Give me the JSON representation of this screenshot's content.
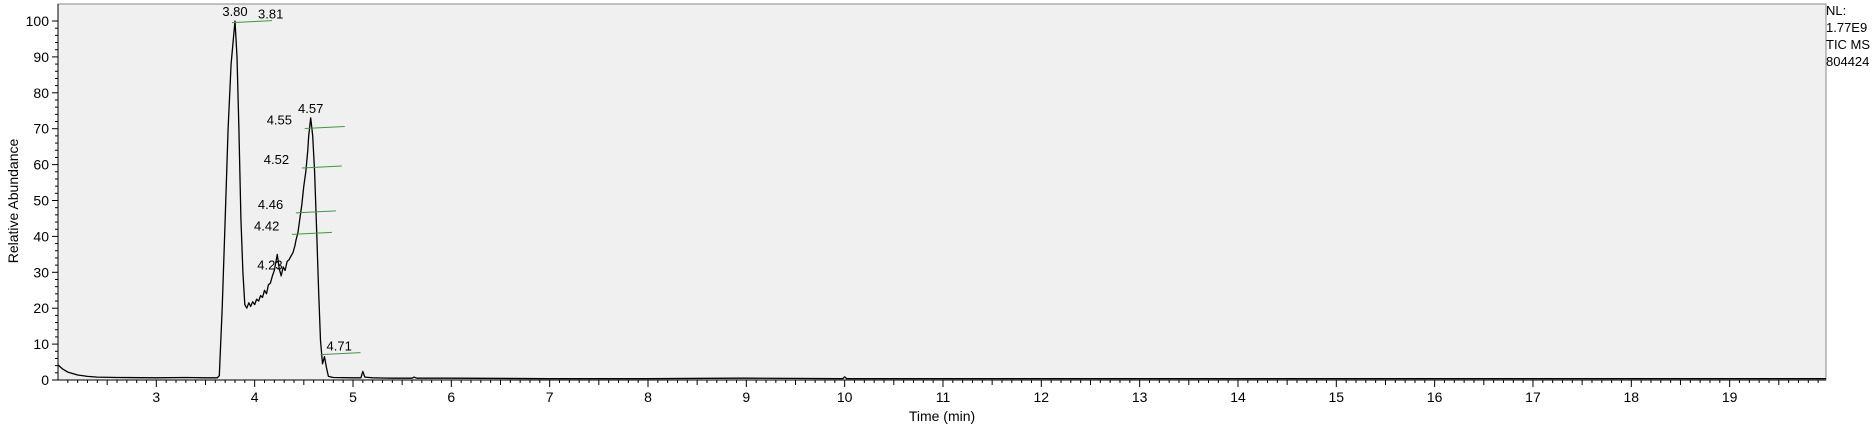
{
  "chart_data": {
    "type": "line",
    "xlabel": "Time (min)",
    "ylabel": "Relative Abundance",
    "xlim": [
      2.0,
      19.98
    ],
    "ylim": [
      0,
      100
    ],
    "x_ticks": [
      3,
      4,
      5,
      6,
      7,
      8,
      9,
      10,
      11,
      12,
      13,
      14,
      15,
      16,
      17,
      18,
      19
    ],
    "y_ticks": [
      0,
      10,
      20,
      30,
      40,
      50,
      60,
      70,
      80,
      90,
      100
    ],
    "colors": {
      "trace": "#000000",
      "plot_bg": "#f0f0f0",
      "peak_marker": "#3a9a3a"
    },
    "trace": [
      [
        2.0,
        4.2
      ],
      [
        2.05,
        3.0
      ],
      [
        2.1,
        2.2
      ],
      [
        2.2,
        1.4
      ],
      [
        2.3,
        1.0
      ],
      [
        2.4,
        0.8
      ],
      [
        2.6,
        0.7
      ],
      [
        3.0,
        0.6
      ],
      [
        3.3,
        0.7
      ],
      [
        3.5,
        0.6
      ],
      [
        3.62,
        0.6
      ],
      [
        3.64,
        1.2
      ],
      [
        3.67,
        20.0
      ],
      [
        3.7,
        45.0
      ],
      [
        3.73,
        70.0
      ],
      [
        3.76,
        88.0
      ],
      [
        3.79,
        97.0
      ],
      [
        3.8,
        100.0
      ],
      [
        3.82,
        90.0
      ],
      [
        3.84,
        70.0
      ],
      [
        3.86,
        45.0
      ],
      [
        3.88,
        30.0
      ],
      [
        3.9,
        21.0
      ],
      [
        3.92,
        20.0
      ],
      [
        3.94,
        21.5
      ],
      [
        3.96,
        20.5
      ],
      [
        3.98,
        21.8
      ],
      [
        4.0,
        21.0
      ],
      [
        4.02,
        22.5
      ],
      [
        4.04,
        22.0
      ],
      [
        4.06,
        23.5
      ],
      [
        4.08,
        23.0
      ],
      [
        4.1,
        25.0
      ],
      [
        4.12,
        24.0
      ],
      [
        4.14,
        26.5
      ],
      [
        4.16,
        27.0
      ],
      [
        4.18,
        29.0
      ],
      [
        4.2,
        30.5
      ],
      [
        4.22,
        33.5
      ],
      [
        4.23,
        35.0
      ],
      [
        4.25,
        31.0
      ],
      [
        4.27,
        29.0
      ],
      [
        4.29,
        31.5
      ],
      [
        4.31,
        30.5
      ],
      [
        4.33,
        33.0
      ],
      [
        4.35,
        33.5
      ],
      [
        4.37,
        34.5
      ],
      [
        4.39,
        35.5
      ],
      [
        4.41,
        37.5
      ],
      [
        4.42,
        39.0
      ],
      [
        4.44,
        41.0
      ],
      [
        4.46,
        45.0
      ],
      [
        4.48,
        49.0
      ],
      [
        4.5,
        54.0
      ],
      [
        4.52,
        58.0
      ],
      [
        4.54,
        64.0
      ],
      [
        4.55,
        68.0
      ],
      [
        4.57,
        73.0
      ],
      [
        4.59,
        68.0
      ],
      [
        4.61,
        58.0
      ],
      [
        4.63,
        42.0
      ],
      [
        4.65,
        25.0
      ],
      [
        4.67,
        11.0
      ],
      [
        4.69,
        4.5
      ],
      [
        4.71,
        6.5
      ],
      [
        4.73,
        3.5
      ],
      [
        4.75,
        1.0
      ],
      [
        4.8,
        0.7
      ],
      [
        5.0,
        0.6
      ],
      [
        5.08,
        0.6
      ],
      [
        5.1,
        2.4
      ],
      [
        5.12,
        0.8
      ],
      [
        5.2,
        0.6
      ],
      [
        5.4,
        0.5
      ],
      [
        5.6,
        0.5
      ],
      [
        5.62,
        0.8
      ],
      [
        5.65,
        0.5
      ],
      [
        6.0,
        0.5
      ],
      [
        7.0,
        0.4
      ],
      [
        8.0,
        0.4
      ],
      [
        8.9,
        0.5
      ],
      [
        9.0,
        0.5
      ],
      [
        9.98,
        0.4
      ],
      [
        10.0,
        0.9
      ],
      [
        10.02,
        0.4
      ],
      [
        12.0,
        0.4
      ],
      [
        15.0,
        0.4
      ],
      [
        18.0,
        0.4
      ],
      [
        19.98,
        0.4
      ]
    ],
    "peaks": [
      {
        "label": "3.80",
        "x": 3.8,
        "y": 100.0,
        "marker": false
      },
      {
        "label": "3.81",
        "x": 3.81,
        "y": 99.0,
        "marker": true
      },
      {
        "label": "4.57",
        "x": 4.57,
        "y": 73.0,
        "marker": false
      },
      {
        "label": "4.55",
        "x": 4.55,
        "y": 69.5,
        "marker": true
      },
      {
        "label": "4.52",
        "x": 4.52,
        "y": 58.5,
        "marker": true
      },
      {
        "label": "4.46",
        "x": 4.46,
        "y": 46.0,
        "marker": true
      },
      {
        "label": "4.42",
        "x": 4.42,
        "y": 40.0,
        "marker": true
      },
      {
        "label": "4.23",
        "x": 4.23,
        "y": 35.0,
        "marker": false
      },
      {
        "label": "4.71",
        "x": 4.71,
        "y": 6.5,
        "marker": true
      }
    ]
  },
  "info_lines": [
    "NL:",
    "1.77E9",
    "TIC  MS",
    "804424"
  ]
}
